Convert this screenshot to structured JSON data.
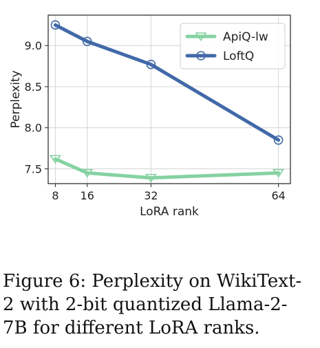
{
  "chart_data": {
    "type": "line",
    "x": [
      8,
      16,
      32,
      64
    ],
    "xticks": [
      "8",
      "16",
      "32",
      "64"
    ],
    "yticks": [
      "7.5",
      "8.0",
      "8.5",
      "9.0"
    ],
    "yticks_values": [
      7.5,
      8.0,
      8.5,
      9.0
    ],
    "xlabel": "LoRA rank",
    "ylabel": "Perplexity",
    "xlim": [
      6.2,
      67
    ],
    "ylim": [
      7.32,
      9.37
    ],
    "grid": true,
    "legend_position": "top-right",
    "series": [
      {
        "name": "ApiQ-lw",
        "values": [
          7.62,
          7.45,
          7.39,
          7.45
        ],
        "color": "#85d2a2",
        "marker": "triangle-down"
      },
      {
        "name": "LoftQ",
        "values": [
          9.25,
          9.05,
          8.77,
          7.85
        ],
        "color": "#4169a8",
        "marker": "circle"
      }
    ]
  },
  "caption": "Figure 6: Perplexity on WikiText-2 with 2-bit quantized Llama-2-7B for different LoRA ranks."
}
